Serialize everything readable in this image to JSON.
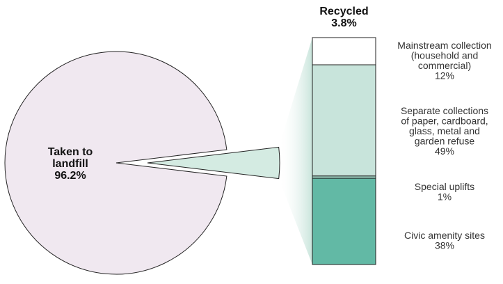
{
  "chart_data": {
    "type": "pie",
    "colors": {
      "landfill": "#f0e8f0",
      "recycled_wedge": "#d4ebe2",
      "edge": "#222222",
      "mainstream": "#ffffff",
      "separate": "#c8e4db",
      "special": "#9fd2c2",
      "civic": "#62b9a5",
      "fan": "#c8e4db"
    },
    "pie": {
      "slices": [
        {
          "key": "landfill",
          "value": 96.2,
          "label_lines": [
            "Taken to",
            "landfill",
            "96.2%"
          ]
        },
        {
          "key": "recycled",
          "value": 3.8
        }
      ]
    },
    "breakdown": {
      "title_lines": [
        "Recycled",
        "3.8%"
      ],
      "segments": [
        {
          "key": "mainstream",
          "value": 12,
          "label_lines": [
            "Mainstream collection",
            "(household and",
            "commercial)",
            "12%"
          ]
        },
        {
          "key": "separate",
          "value": 49,
          "label_lines": [
            "Separate collections",
            "of paper, cardboard,",
            "glass, metal and",
            "garden refuse",
            "49%"
          ]
        },
        {
          "key": "special",
          "value": 1,
          "label_lines": [
            "Special uplifts",
            "1%"
          ]
        },
        {
          "key": "civic",
          "value": 38,
          "label_lines": [
            "Civic amenity sites",
            "38%"
          ]
        }
      ]
    }
  }
}
